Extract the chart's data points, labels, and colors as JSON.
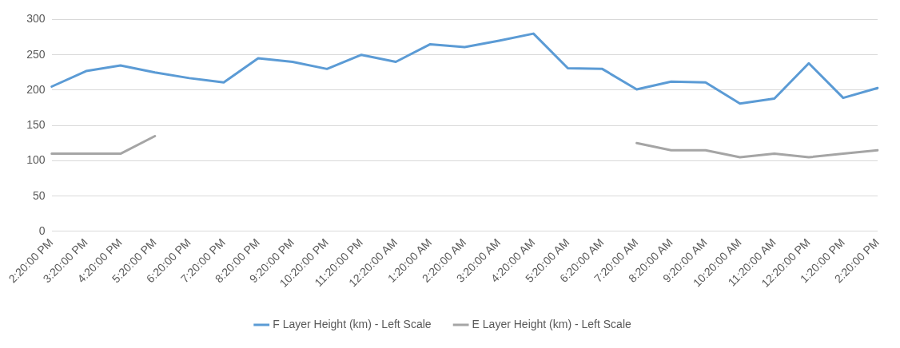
{
  "chart_data": {
    "type": "line",
    "categories": [
      "2:20:00 PM",
      "3:20:00 PM",
      "4:20:00 PM",
      "5:20:00 PM",
      "6:20:00 PM",
      "7:20:00 PM",
      "8:20:00 PM",
      "9:20:00 PM",
      "10:20:00 PM",
      "11:20:00 PM",
      "12:20:00 AM",
      "1:20:00 AM",
      "2:20:00 AM",
      "3:20:00 AM",
      "4:20:00 AM",
      "5:20:00 AM",
      "6:20:00 AM",
      "7:20:00 AM",
      "8:20:00 AM",
      "9:20:00 AM",
      "10:20:00 AM",
      "11:20:00 AM",
      "12:20:00 PM",
      "1:20:00 PM",
      "2:20:00 PM"
    ],
    "series": [
      {
        "name": "F Layer Height (km) - Left Scale",
        "color": "#5b9bd5",
        "values": [
          205,
          227,
          235,
          225,
          217,
          211,
          245,
          240,
          230,
          250,
          240,
          265,
          261,
          270,
          280,
          231,
          230,
          201,
          212,
          211,
          181,
          188,
          238,
          189,
          203
        ]
      },
      {
        "name": "E Layer Height (km) - Left Scale",
        "color": "#a5a5a5",
        "values": [
          110,
          110,
          110,
          135,
          null,
          null,
          null,
          null,
          null,
          null,
          null,
          null,
          null,
          null,
          null,
          null,
          null,
          125,
          115,
          115,
          105,
          110,
          105,
          110,
          115
        ]
      }
    ],
    "ylim": [
      0,
      300
    ],
    "yticks": [
      0,
      50,
      100,
      150,
      200,
      250,
      300
    ],
    "grid": "y",
    "legend": "bottom",
    "marker": "none",
    "line_style": "solid"
  }
}
